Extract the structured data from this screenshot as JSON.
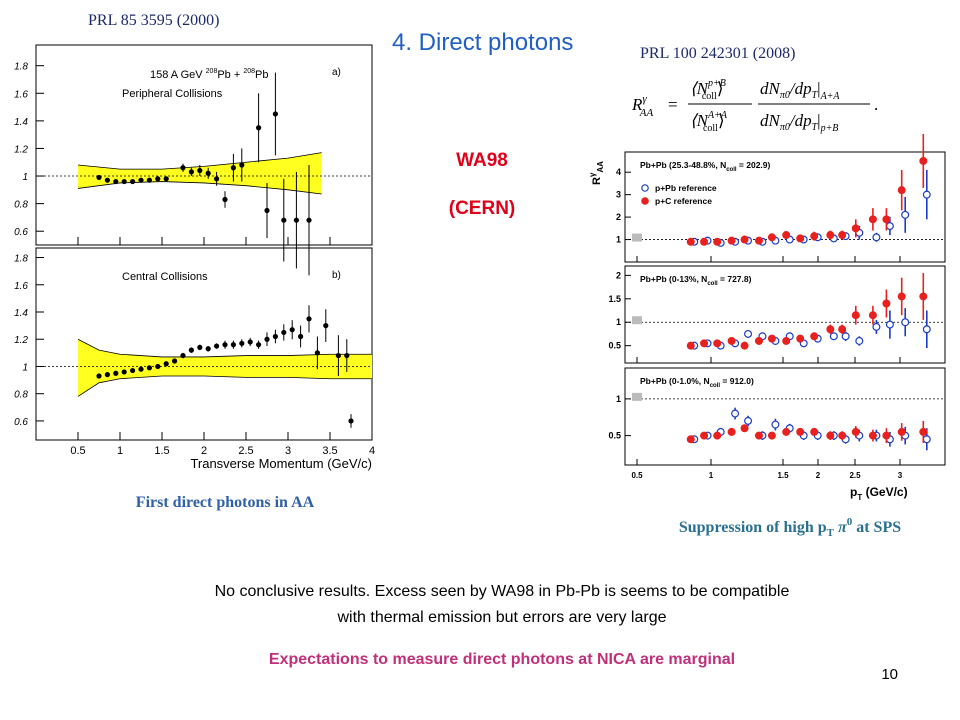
{
  "header": {
    "ref_left": "PRL 85 3595 (2000)",
    "title": "4. Direct photons",
    "ref_right": "PRL 100 242301 (2008)"
  },
  "experiment": {
    "name": "WA98",
    "lab": "(CERN)"
  },
  "formula": {
    "lhs": "R",
    "lhs_sup": "γ",
    "lhs_sub": "AA",
    "eq": "=",
    "n1": "⟨N",
    "n1_sup": "p+B",
    "n1_sub": "coll",
    "n1_end": "⟩",
    "d1": "⟨N",
    "d1_sup": "A+A",
    "d1_sub": "coll",
    "d1_end": "⟩",
    "n2": "dN",
    "n2_sub": "π0",
    "n2_mid": "/dp",
    "n2_sub2": "T",
    "n2_bar": "|",
    "n2_sub3": "A+A",
    "d2": "dN",
    "d2_sub": "π0",
    "d2_mid": "/dp",
    "d2_sub2": "T",
    "d2_bar": "|",
    "d2_sub3": "p+B",
    "end": "."
  },
  "left_figure": {
    "reaction": [
      "158 A GeV ",
      "208",
      "Pb + ",
      "208",
      "Pb"
    ],
    "xlim": [
      0,
      4
    ],
    "xticks": [
      0.5,
      1,
      1.5,
      2,
      2.5,
      3,
      3.5,
      4
    ],
    "xlabel": "Transverse Momentum (GeV/c)",
    "panels": [
      {
        "tag": "a)",
        "label": "Peripheral Collisions",
        "ylim": [
          0.5,
          1.95
        ],
        "yticks": [
          0.6,
          0.8,
          1,
          1.2,
          1.4,
          1.6,
          1.8
        ],
        "x": [
          0.75,
          0.85,
          0.95,
          1.05,
          1.15,
          1.25,
          1.35,
          1.45,
          1.55,
          1.75,
          1.85,
          1.95,
          2.05,
          2.15,
          2.25,
          2.35,
          2.45,
          2.65,
          2.75,
          2.85,
          2.95,
          3.1,
          3.25
        ],
        "values": [
          0.99,
          0.97,
          0.96,
          0.96,
          0.96,
          0.97,
          0.97,
          0.98,
          0.98,
          1.06,
          1.03,
          1.04,
          1.02,
          0.98,
          0.83,
          1.06,
          1.08,
          1.35,
          0.75,
          1.45,
          0.68,
          0.68,
          0.68
        ],
        "errors": [
          0.01,
          0.01,
          0.01,
          0.01,
          0.01,
          0.01,
          0.01,
          0.01,
          0.01,
          0.03,
          0.03,
          0.04,
          0.04,
          0.05,
          0.06,
          0.1,
          0.12,
          0.25,
          0.2,
          0.3,
          0.3,
          0.35,
          0.4
        ],
        "band_x": [
          0.5,
          1,
          1.5,
          2,
          2.5,
          3,
          3.4
        ],
        "band_low": [
          0.91,
          0.95,
          0.96,
          0.95,
          0.93,
          0.9,
          0.87
        ],
        "band_high": [
          1.08,
          1.05,
          1.05,
          1.07,
          1.1,
          1.13,
          1.17
        ]
      },
      {
        "tag": "b)",
        "label": "Central Collisions",
        "ylim": [
          0.46,
          1.87
        ],
        "yticks": [
          0.6,
          0.8,
          1,
          1.2,
          1.4,
          1.6,
          1.8
        ],
        "x": [
          0.75,
          0.85,
          0.95,
          1.05,
          1.15,
          1.25,
          1.35,
          1.45,
          1.55,
          1.65,
          1.75,
          1.85,
          1.95,
          2.05,
          2.15,
          2.25,
          2.35,
          2.45,
          2.55,
          2.65,
          2.75,
          2.85,
          2.95,
          3.05,
          3.15,
          3.25,
          3.35,
          3.45,
          3.6,
          3.7,
          3.75
        ],
        "values": [
          0.93,
          0.94,
          0.95,
          0.96,
          0.97,
          0.98,
          0.99,
          1.0,
          1.02,
          1.04,
          1.08,
          1.12,
          1.14,
          1.13,
          1.15,
          1.16,
          1.16,
          1.17,
          1.18,
          1.16,
          1.2,
          1.22,
          1.25,
          1.27,
          1.22,
          1.35,
          1.1,
          1.3,
          1.08,
          1.08,
          0.6
        ],
        "errors": [
          0.01,
          0.01,
          0.01,
          0.01,
          0.01,
          0.01,
          0.01,
          0.01,
          0.01,
          0.01,
          0.02,
          0.02,
          0.02,
          0.02,
          0.02,
          0.03,
          0.03,
          0.03,
          0.03,
          0.03,
          0.05,
          0.05,
          0.06,
          0.07,
          0.08,
          0.1,
          0.12,
          0.12,
          0.15,
          0.12,
          0.05
        ],
        "band_x": [
          0.5,
          0.75,
          1,
          1.5,
          2,
          2.5,
          3,
          3.5,
          4
        ],
        "band_low": [
          0.78,
          0.88,
          0.91,
          0.93,
          0.93,
          0.92,
          0.92,
          0.91,
          0.91
        ],
        "band_high": [
          1.2,
          1.12,
          1.09,
          1.07,
          1.07,
          1.08,
          1.08,
          1.09,
          1.09
        ]
      }
    ]
  },
  "right_figure": {
    "ylabel": "R",
    "ylabel_sup": "γ",
    "ylabel_sub": "AA",
    "xticks": [
      0.5,
      1,
      1.5,
      2,
      2.5,
      3
    ],
    "xlabel": [
      "p",
      "T",
      " (GeV/c)"
    ],
    "legend": [
      {
        "name": "p+Pb reference",
        "color": "#1a3cc8"
      },
      {
        "name": "p+C reference",
        "color": "#e8201e"
      }
    ],
    "x": [
      0.87,
      0.96,
      1.05,
      1.15,
      1.24,
      1.34,
      1.43,
      1.56,
      1.76,
      1.96,
      2.18,
      2.34,
      2.52,
      2.71,
      2.86,
      3.03,
      3.27
    ],
    "panels": [
      {
        "label": [
          "Pb+Pb (25.3-48.8%, N",
          "coll",
          " = 202.9)"
        ],
        "ylim": [
          0,
          4.9
        ],
        "yticks": [
          1,
          2,
          3,
          4
        ],
        "series": [
          {
            "values": [
              0.9,
              0.95,
              0.85,
              0.9,
              0.95,
              0.9,
              0.95,
              1.0,
              1.0,
              1.1,
              1.05,
              1.15,
              1.3,
              1.1,
              1.6,
              2.1,
              3.0
            ],
            "errors": [
              0.05,
              0.05,
              0.05,
              0.05,
              0.06,
              0.06,
              0.08,
              0.1,
              0.1,
              0.15,
              0.15,
              0.15,
              0.3,
              0.2,
              0.4,
              0.8,
              1.1
            ]
          },
          {
            "values": [
              0.9,
              0.9,
              0.9,
              0.95,
              1.0,
              0.95,
              1.1,
              1.2,
              1.05,
              1.15,
              1.2,
              1.2,
              1.5,
              1.9,
              1.9,
              3.2,
              4.5
            ],
            "errors": [
              0.05,
              0.05,
              0.05,
              0.05,
              0.06,
              0.06,
              0.1,
              0.15,
              0.15,
              0.2,
              0.2,
              0.2,
              0.4,
              0.5,
              0.5,
              0.9,
              1.2
            ]
          }
        ]
      },
      {
        "label": [
          "Pb+Pb (0-13%, N",
          "coll",
          " = 727.8)"
        ],
        "ylim": [
          0.13,
          2.2
        ],
        "yticks": [
          0.5,
          1,
          1.5,
          2
        ],
        "series": [
          {
            "values": [
              0.5,
              0.55,
              0.5,
              0.55,
              0.75,
              0.7,
              0.6,
              0.7,
              0.55,
              0.65,
              0.7,
              0.7,
              0.6,
              0.9,
              0.95,
              1.0,
              0.85
            ],
            "errors": [
              0.04,
              0.04,
              0.04,
              0.05,
              0.06,
              0.06,
              0.05,
              0.06,
              0.06,
              0.08,
              0.08,
              0.1,
              0.1,
              0.15,
              0.3,
              0.3,
              0.4
            ]
          },
          {
            "values": [
              0.5,
              0.55,
              0.55,
              0.6,
              0.5,
              0.6,
              0.65,
              0.6,
              0.65,
              0.7,
              0.85,
              0.85,
              1.15,
              1.15,
              1.4,
              1.55,
              1.55
            ],
            "errors": [
              0.05,
              0.05,
              0.05,
              0.05,
              0.05,
              0.05,
              0.06,
              0.06,
              0.08,
              0.08,
              0.1,
              0.1,
              0.2,
              0.2,
              0.3,
              0.4,
              0.5
            ]
          }
        ]
      },
      {
        "label": [
          "Pb+Pb (0-1.0%, N",
          "coll",
          " = 912.0)"
        ],
        "ylim": [
          0.1,
          1.42
        ],
        "yticks": [
          0.5,
          1
        ],
        "series": [
          {
            "values": [
              0.45,
              0.5,
              0.55,
              0.8,
              0.7,
              0.5,
              0.65,
              0.6,
              0.5,
              0.5,
              0.5,
              0.45,
              0.5,
              0.5,
              0.45,
              0.5,
              0.45
            ],
            "errors": [
              0.04,
              0.04,
              0.05,
              0.08,
              0.07,
              0.06,
              0.08,
              0.06,
              0.06,
              0.06,
              0.06,
              0.06,
              0.08,
              0.08,
              0.1,
              0.12,
              0.15
            ]
          },
          {
            "values": [
              0.45,
              0.5,
              0.5,
              0.55,
              0.6,
              0.5,
              0.5,
              0.55,
              0.55,
              0.55,
              0.5,
              0.5,
              0.55,
              0.5,
              0.5,
              0.55,
              0.55
            ],
            "errors": [
              0.04,
              0.04,
              0.04,
              0.05,
              0.05,
              0.05,
              0.05,
              0.05,
              0.05,
              0.05,
              0.06,
              0.06,
              0.08,
              0.08,
              0.1,
              0.12,
              0.15
            ]
          }
        ]
      }
    ]
  },
  "captions": {
    "left": "First direct photons in AA",
    "right": [
      "Suppression of high p",
      "T",
      " π",
      "0",
      " at SPS"
    ]
  },
  "notes": {
    "line1": "No conclusive results. Excess seen by WA98 in Pb-Pb is seems to be compatible",
    "line2": "with thermal emission but errors are very large",
    "highlight": "Expectations to measure direct photons at NICA are marginal"
  },
  "page_number": "10"
}
